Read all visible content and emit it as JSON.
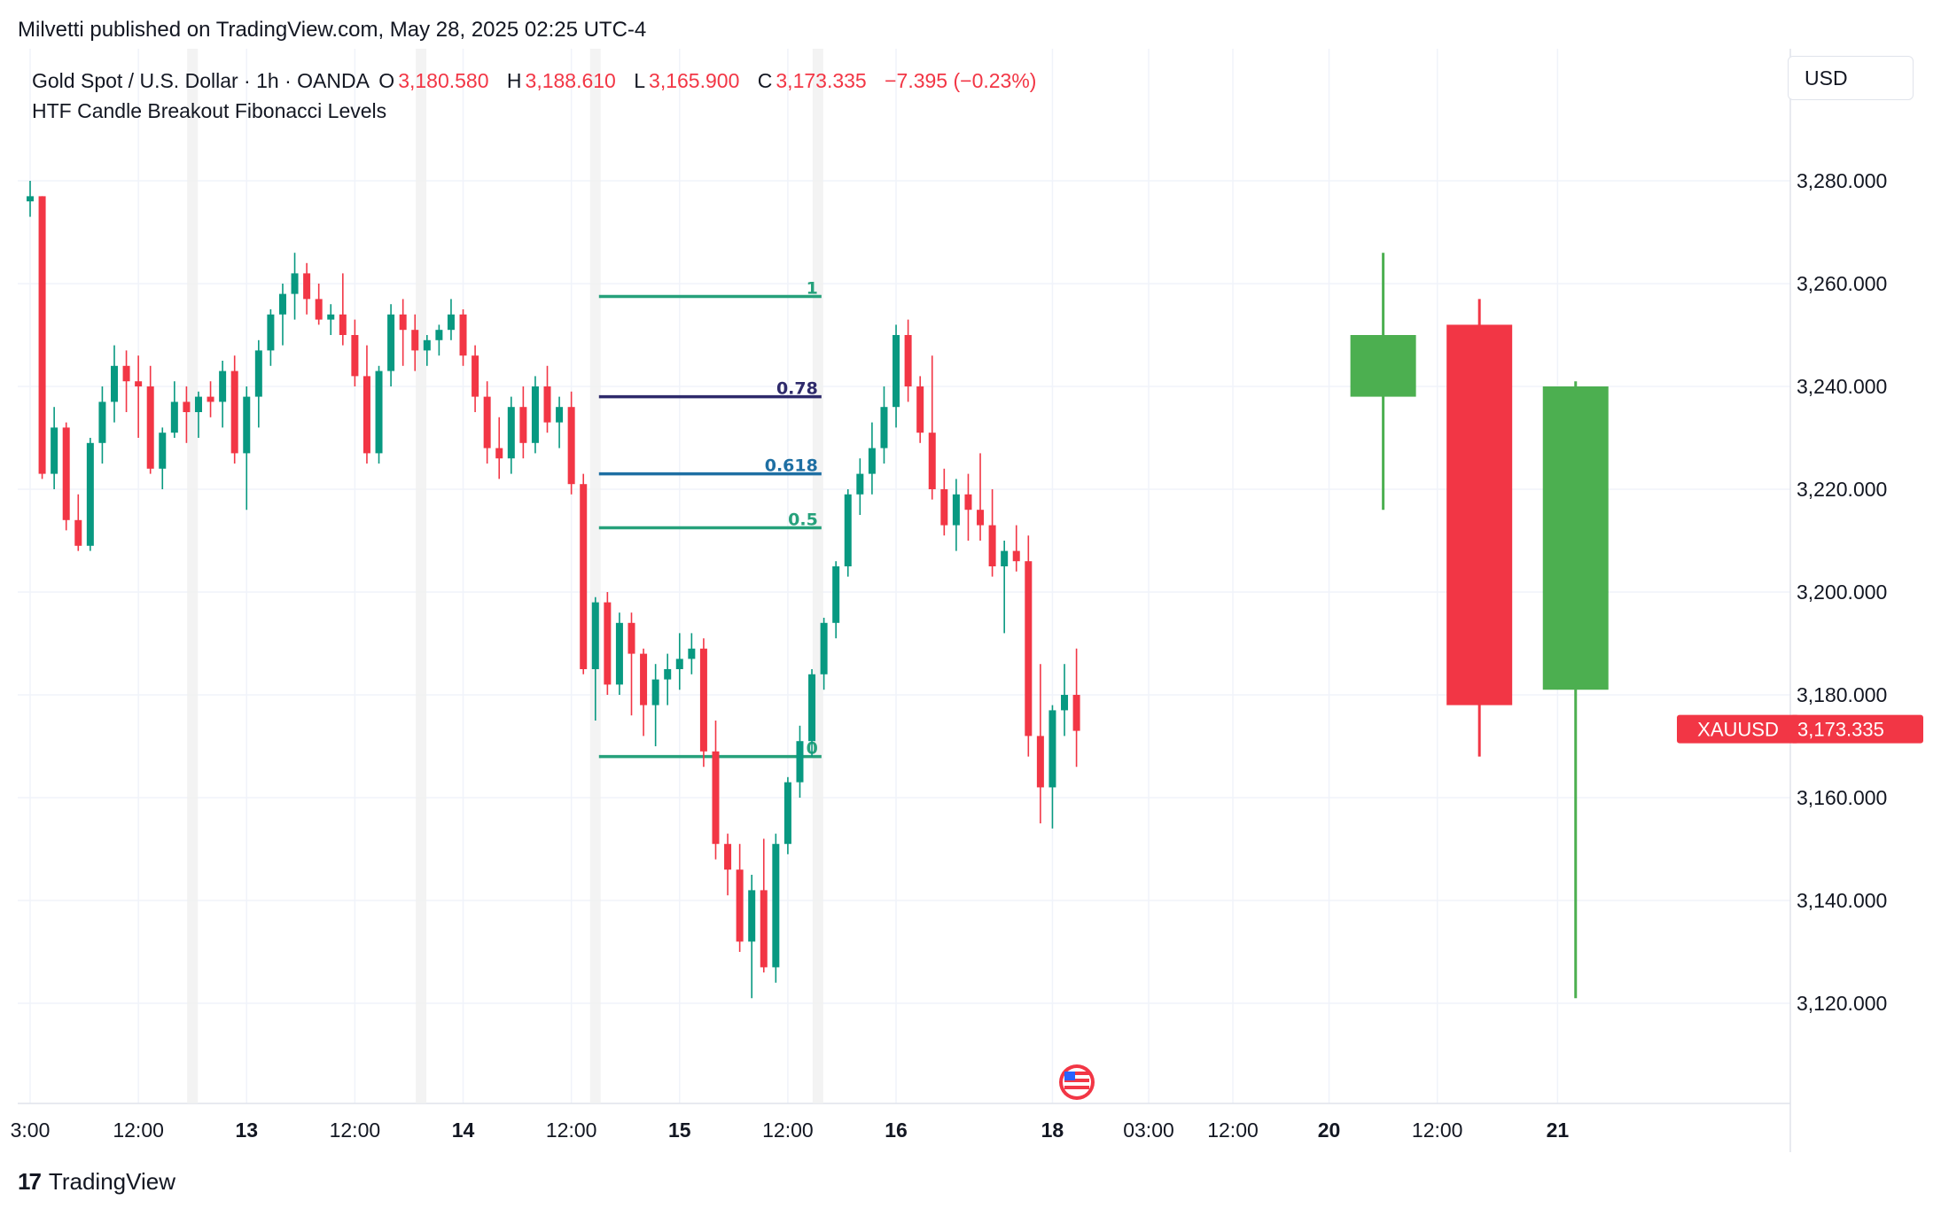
{
  "header": {
    "publish_line": "Milvetti published on TradingView.com, May 28, 2025 02:25 UTC-4"
  },
  "legend": {
    "symbol_line": "Gold Spot / U.S. Dollar · 1h · OANDA",
    "o_label": "O",
    "o_value": "3,180.580",
    "h_label": "H",
    "h_value": "3,188.610",
    "l_label": "L",
    "l_value": "3,165.900",
    "c_label": "C",
    "c_value": "3,173.335",
    "change": "−7.395 (−0.23%)",
    "indicator": "HTF Candle Breakout Fibonacci Levels"
  },
  "currency_button": "USD",
  "footer": {
    "brand": "TradingView",
    "logo_glyph": "17"
  },
  "colors": {
    "up": "#089981",
    "down": "#f23645",
    "htf_up": "#4caf50",
    "htf_down": "#f23645",
    "grid": "#f0f3fa",
    "fib_green": "#26a17b",
    "fib_078": "#2e2a6b",
    "fib_0618": "#1e6fa3"
  },
  "chart_data": {
    "type": "candlestick",
    "symbol": "XAUUSD",
    "last_price_label": "XAUUSD",
    "last_price": "3,173.335",
    "last_price_value": 3173.335,
    "ylim": [
      3100,
      3300
    ],
    "y_ticks": [
      "3,280.000",
      "3,260.000",
      "3,240.000",
      "3,220.000",
      "3,200.000",
      "3,180.000",
      "3,160.000",
      "3,140.000",
      "3,120.000"
    ],
    "y_tick_values": [
      3280,
      3260,
      3240,
      3220,
      3200,
      3180,
      3160,
      3140,
      3120
    ],
    "x_ticks": [
      "3:00",
      "12:00",
      "13",
      "12:00",
      "14",
      "12:00",
      "15",
      "12:00",
      "16",
      "18",
      "03:00",
      "12:00",
      "20",
      "12:00",
      "21"
    ],
    "x_tick_bold": [
      false,
      false,
      true,
      false,
      true,
      false,
      true,
      false,
      true,
      true,
      false,
      false,
      true,
      false,
      true
    ],
    "x_tick_index": [
      0,
      9,
      18,
      27,
      36,
      45,
      54,
      63,
      72,
      85,
      93,
      100,
      108,
      117,
      127
    ],
    "fib_levels": [
      {
        "label": "1",
        "value": 3257.5,
        "color_key": "fib_green"
      },
      {
        "label": "0.78",
        "value": 3238,
        "color_key": "fib_078"
      },
      {
        "label": "0.618",
        "value": 3223,
        "color_key": "fib_0618"
      },
      {
        "label": "0.5",
        "value": 3212.5,
        "color_key": "fib_green"
      },
      {
        "label": "0",
        "value": 3168,
        "color_key": "fib_green"
      }
    ],
    "fib_range_index": [
      47,
      65.5
    ],
    "candles": [
      [
        3276,
        3280,
        3273,
        3277
      ],
      [
        3277,
        3277,
        3222,
        3223
      ],
      [
        3223,
        3236,
        3220,
        3232
      ],
      [
        3232,
        3233,
        3212,
        3214
      ],
      [
        3214,
        3219,
        3208,
        3209
      ],
      [
        3209,
        3230,
        3208,
        3229
      ],
      [
        3229,
        3240,
        3225,
        3237
      ],
      [
        3237,
        3248,
        3233,
        3244
      ],
      [
        3244,
        3247,
        3235,
        3241
      ],
      [
        3241,
        3246,
        3230,
        3240
      ],
      [
        3240,
        3244,
        3223,
        3224
      ],
      [
        3224,
        3232,
        3220,
        3231
      ],
      [
        3231,
        3241,
        3230,
        3237
      ],
      [
        3237,
        3240,
        3229,
        3235
      ],
      [
        3235,
        3239,
        3230,
        3238
      ],
      [
        3238,
        3241,
        3234,
        3237
      ],
      [
        3237,
        3245,
        3232,
        3243
      ],
      [
        3243,
        3246,
        3225,
        3227
      ],
      [
        3227,
        3240,
        3216,
        3238
      ],
      [
        3238,
        3249,
        3232,
        3247
      ],
      [
        3247,
        3255,
        3244,
        3254
      ],
      [
        3254,
        3260,
        3248,
        3258
      ],
      [
        3258,
        3266,
        3253,
        3262
      ],
      [
        3262,
        3264,
        3254,
        3257
      ],
      [
        3257,
        3260,
        3252,
        3253
      ],
      [
        3253,
        3256,
        3250,
        3254
      ],
      [
        3254,
        3262,
        3248,
        3250
      ],
      [
        3250,
        3253,
        3240,
        3242
      ],
      [
        3242,
        3248,
        3225,
        3227
      ],
      [
        3227,
        3244,
        3225,
        3243
      ],
      [
        3243,
        3256,
        3240,
        3254
      ],
      [
        3254,
        3257,
        3244,
        3251
      ],
      [
        3251,
        3254,
        3243,
        3247
      ],
      [
        3247,
        3250,
        3244,
        3249
      ],
      [
        3249,
        3252,
        3246,
        3251
      ],
      [
        3251,
        3257,
        3249,
        3254
      ],
      [
        3254,
        3255,
        3244,
        3246
      ],
      [
        3246,
        3248,
        3235,
        3238
      ],
      [
        3238,
        3241,
        3225,
        3228
      ],
      [
        3228,
        3234,
        3222,
        3226
      ],
      [
        3226,
        3238,
        3223,
        3236
      ],
      [
        3236,
        3240,
        3226,
        3229
      ],
      [
        3229,
        3242,
        3227,
        3240
      ],
      [
        3240,
        3244,
        3231,
        3233
      ],
      [
        3233,
        3238,
        3228,
        3236
      ],
      [
        3236,
        3239,
        3219,
        3221
      ],
      [
        3221,
        3223,
        3184,
        3185
      ],
      [
        3185,
        3199,
        3175,
        3198
      ],
      [
        3198,
        3200,
        3180,
        3182
      ],
      [
        3182,
        3196,
        3180,
        3194
      ],
      [
        3194,
        3196,
        3176,
        3188
      ],
      [
        3188,
        3189,
        3172,
        3178
      ],
      [
        3178,
        3186,
        3170,
        3183
      ],
      [
        3183,
        3188,
        3178,
        3185
      ],
      [
        3185,
        3192,
        3181,
        3187
      ],
      [
        3187,
        3192,
        3184,
        3189
      ],
      [
        3189,
        3191,
        3166,
        3169
      ],
      [
        3169,
        3175,
        3148,
        3151
      ],
      [
        3151,
        3153,
        3141,
        3146
      ],
      [
        3146,
        3151,
        3130,
        3132
      ],
      [
        3132,
        3145,
        3121,
        3142
      ],
      [
        3142,
        3152,
        3126,
        3127
      ],
      [
        3127,
        3153,
        3124,
        3151
      ],
      [
        3151,
        3164,
        3149,
        3163
      ],
      [
        3163,
        3174,
        3160,
        3171
      ],
      [
        3171,
        3185,
        3168,
        3184
      ],
      [
        3184,
        3195,
        3181,
        3194
      ],
      [
        3194,
        3206,
        3191,
        3205
      ],
      [
        3205,
        3220,
        3203,
        3219
      ],
      [
        3219,
        3226,
        3215,
        3223
      ],
      [
        3223,
        3233,
        3219,
        3228
      ],
      [
        3228,
        3240,
        3225,
        3236
      ],
      [
        3236,
        3252,
        3232,
        3250
      ],
      [
        3250,
        3253,
        3237,
        3240
      ],
      [
        3240,
        3242,
        3229,
        3231
      ],
      [
        3231,
        3246,
        3218,
        3220
      ],
      [
        3220,
        3224,
        3211,
        3213
      ],
      [
        3213,
        3222,
        3208,
        3219
      ],
      [
        3219,
        3223,
        3210,
        3216
      ],
      [
        3216,
        3227,
        3210,
        3213
      ],
      [
        3213,
        3220,
        3203,
        3205
      ],
      [
        3205,
        3210,
        3192,
        3208
      ],
      [
        3208,
        3213,
        3204,
        3206
      ],
      [
        3206,
        3211,
        3168,
        3172
      ],
      [
        3172,
        3186,
        3155,
        3162
      ],
      [
        3162,
        3178,
        3154,
        3177
      ],
      [
        3177,
        3186,
        3172,
        3180
      ],
      [
        3180,
        3189,
        3166,
        3173
      ]
    ],
    "htf_candles": [
      {
        "idx": 112.5,
        "open": 3238,
        "high": 3266,
        "low": 3216,
        "close": 3250
      },
      {
        "idx": 120.5,
        "open": 3252,
        "high": 3257,
        "low": 3168,
        "close": 3178
      },
      {
        "idx": 128.5,
        "open": 3181,
        "high": 3241,
        "low": 3121,
        "close": 3240
      }
    ]
  }
}
